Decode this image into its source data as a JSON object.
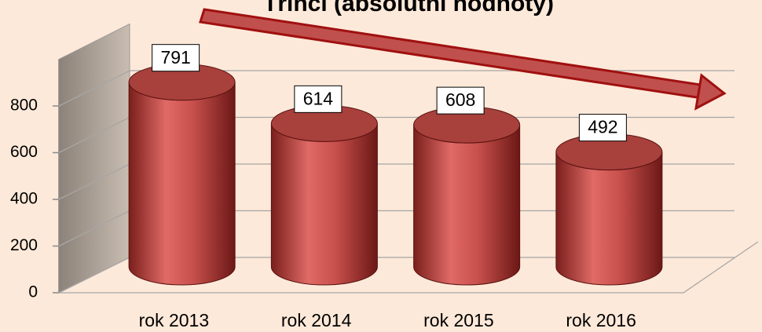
{
  "chart_data": {
    "type": "bar3d",
    "title": "Třinci (absolutní hodnoty)",
    "categories": [
      "rok 2013",
      "rok 2014",
      "rok 2015",
      "rok 2016"
    ],
    "values": [
      791,
      614,
      608,
      492
    ],
    "color": "#c0504d",
    "ylim": [
      0,
      1000
    ],
    "yticks": [
      0,
      200,
      400,
      600,
      800
    ],
    "grid": true
  }
}
